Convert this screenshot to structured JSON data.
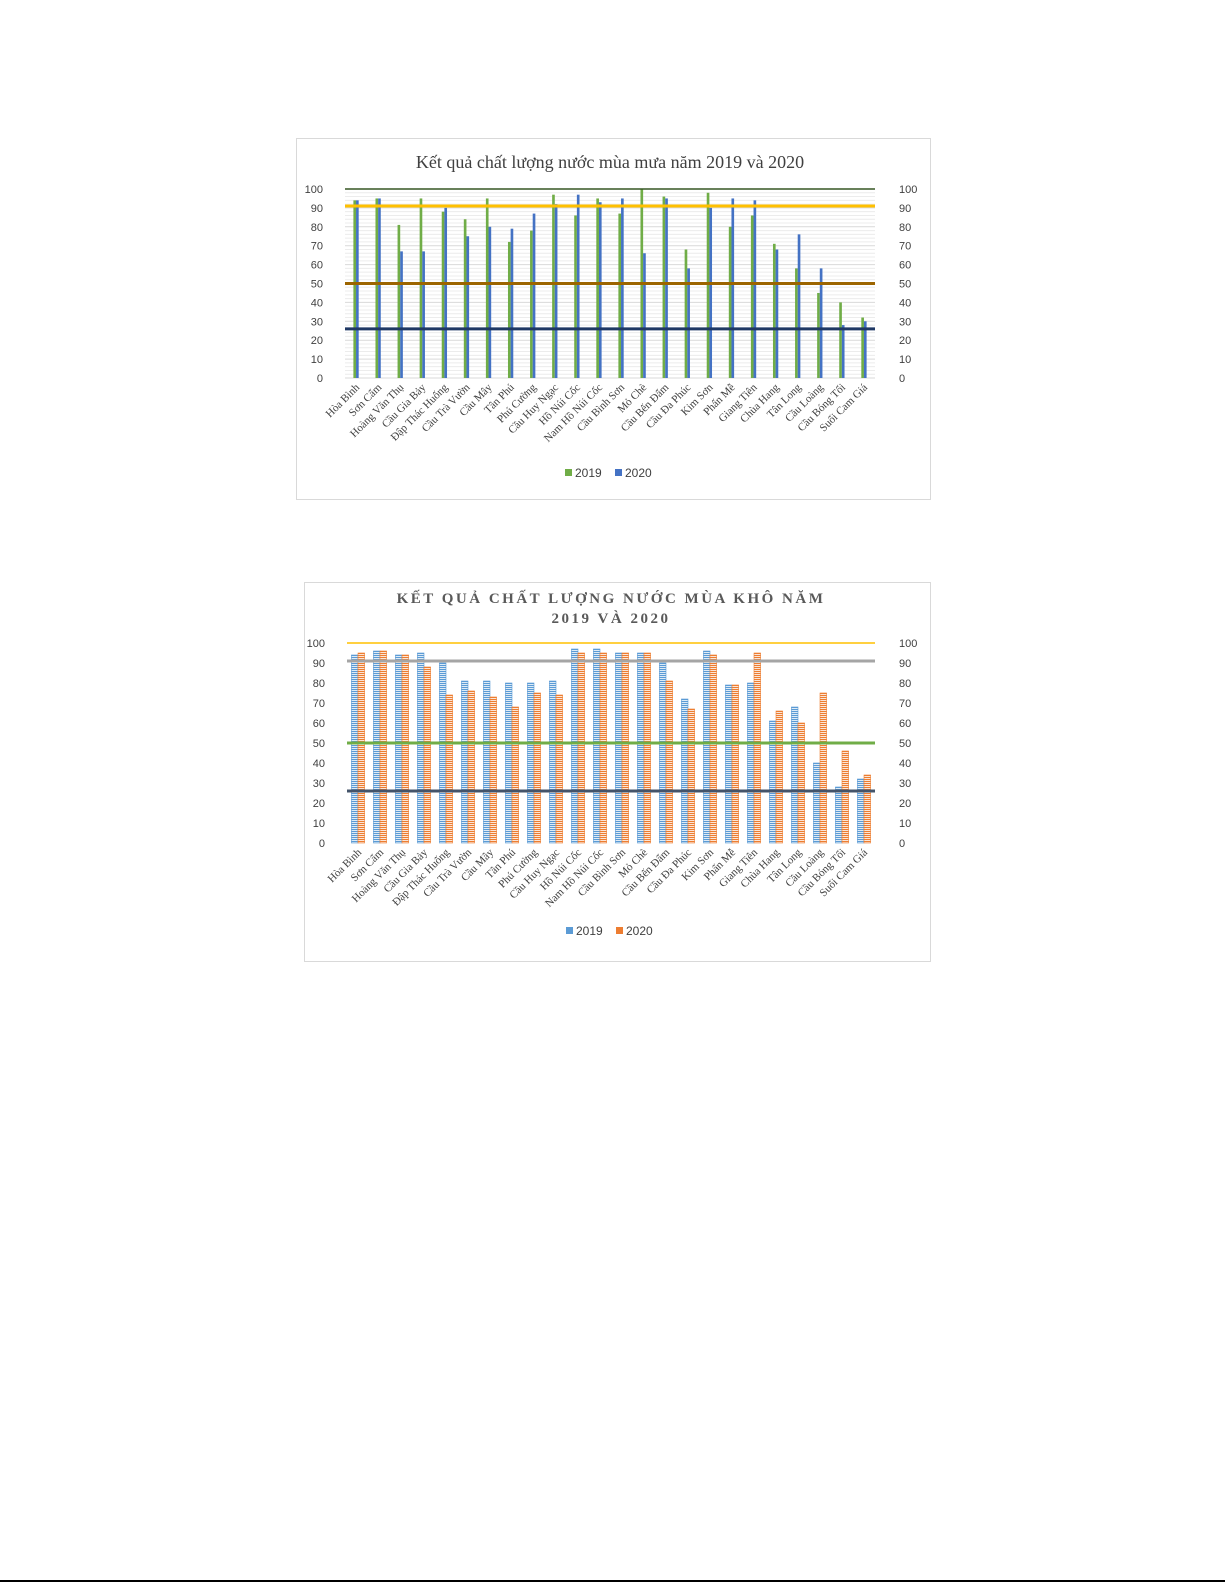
{
  "chart_data": [
    {
      "type": "bar",
      "title": "Kết quả chất lượng nước mùa mưa năm 2019 và 2020",
      "categories": [
        "Hòa Bình",
        "Sơn Cẩm",
        "Hoàng Văn Thụ",
        "Cầu Gia Bảy",
        "Đập Thác Huống",
        "Cầu Trà Vườn",
        "Cầu Mây",
        "Tân Phú",
        "Phú Cường",
        "Cầu Huy Ngạc",
        "Hồ Núi Cốc",
        "Nam Hồ Núi Cốc",
        "Cầu Bình Sơn",
        "Mỏ Chè",
        "Cầu Bến Đẩm",
        "Cầu Đa Phúc",
        "Kim Sơn",
        "Phấn Mễ",
        "Giang Tiên",
        "Chùa Hang",
        "Tân Long",
        "Cầu Loàng",
        "Cầu Bóng Tối",
        "Suối Cam Giá"
      ],
      "series": [
        {
          "name": "2019",
          "color": "#70ad47",
          "values": [
            94,
            95,
            81,
            95,
            88,
            84,
            95,
            72,
            78,
            97,
            86,
            95,
            87,
            100,
            96,
            68,
            98,
            80,
            86,
            71,
            58,
            45,
            40,
            32
          ]
        },
        {
          "name": "2020",
          "color": "#4472c4",
          "values": [
            94,
            95,
            67,
            67,
            90,
            75,
            80,
            79,
            87,
            92,
            97,
            93,
            95,
            66,
            95,
            58,
            90,
            95,
            94,
            68,
            76,
            58,
            28,
            30
          ]
        }
      ],
      "reference_lines": [
        {
          "value": 100,
          "color": "#375623"
        },
        {
          "value": 91,
          "color": "#ffc000"
        },
        {
          "value": 50,
          "color": "#9c6500"
        },
        {
          "value": 26,
          "color": "#1f3864"
        }
      ],
      "ylim": [
        0,
        100
      ],
      "y_ticks": [
        0,
        10,
        20,
        30,
        40,
        50,
        60,
        70,
        80,
        90,
        100
      ],
      "secondary_axis": true,
      "grid": true,
      "legend": "bottom",
      "title_style": "normal"
    },
    {
      "type": "bar",
      "title": "KẾT QUẢ CHẤT LƯỢNG NƯỚC MÙA KHÔ NĂM 2019 VÀ 2020",
      "title_lines": [
        "KẾT QUẢ CHẤT LƯỢNG NƯỚC MÙA KHÔ NĂM",
        "2019 VÀ 2020"
      ],
      "categories": [
        "Hòa Bình",
        "Sơn Cẩm",
        "Hoàng Văn Thụ",
        "Cầu Gia Bảy",
        "Đập Thác Huống",
        "Cầu Trà Vườn",
        "Cầu Mây",
        "Tân Phú",
        "Phú Cường",
        "Cầu Huy Ngạc",
        "Hồ Núi Cốc",
        "Nam Hồ Núi Cốc",
        "Cầu Bình Sơn",
        "Mỏ Chè",
        "Cầu Bến Đẩm",
        "Cầu Đa Phúc",
        "Kim Sơn",
        "Phấn Mễ",
        "Giang Tiên",
        "Chùa Hang",
        "Tân Long",
        "Cầu Loàng",
        "Cầu Bóng Tối",
        "Suối Cam Giá"
      ],
      "series": [
        {
          "name": "2019",
          "color": "#5b9bd5",
          "values": [
            94,
            96,
            94,
            95,
            90,
            81,
            81,
            80,
            80,
            81,
            97,
            97,
            95,
            95,
            90,
            72,
            96,
            79,
            80,
            61,
            68,
            40,
            28,
            32
          ]
        },
        {
          "name": "2020",
          "color": "#ed7d31",
          "values": [
            95,
            96,
            94,
            88,
            74,
            76,
            73,
            68,
            75,
            74,
            95,
            95,
            95,
            95,
            81,
            67,
            94,
            79,
            95,
            66,
            60,
            75,
            46,
            34
          ]
        }
      ],
      "reference_lines": [
        {
          "value": 100,
          "color": "#ffc000"
        },
        {
          "value": 91,
          "color": "#a5a5a5"
        },
        {
          "value": 50,
          "color": "#70ad47"
        },
        {
          "value": 26,
          "color": "#44546a"
        }
      ],
      "ylim": [
        0,
        100
      ],
      "y_ticks": [
        0,
        10,
        20,
        30,
        40,
        50,
        60,
        70,
        80,
        90,
        100
      ],
      "secondary_axis": true,
      "grid": false,
      "legend": "bottom",
      "title_style": "bold-caps"
    }
  ]
}
